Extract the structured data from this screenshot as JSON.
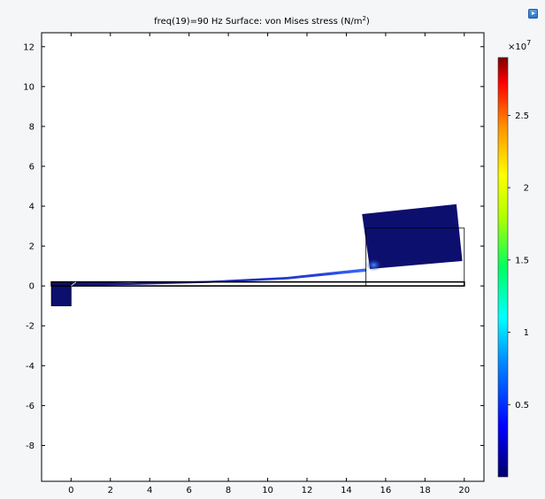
{
  "chart_data": {
    "type": "heatmap",
    "title": {
      "prefix": "freq(19)=90 Hz   Surface: von Mises stress (N/m",
      "superscript": "2",
      "suffix": ")"
    },
    "xlim": [
      -1.5,
      21
    ],
    "ylim": [
      -9.8,
      12.7
    ],
    "x_ticks": [
      0,
      2,
      4,
      6,
      8,
      10,
      12,
      14,
      16,
      18,
      20
    ],
    "y_ticks": [
      12,
      10,
      8,
      6,
      4,
      2,
      0,
      -2,
      -4,
      -6,
      -8
    ],
    "grid": false,
    "colorbar": {
      "multiplier_base": "×10",
      "multiplier_exponent": "7",
      "range": [
        0,
        2.9
      ],
      "ticks": [
        0.5,
        1,
        1.5,
        2,
        2.5
      ],
      "colormap": "rainbow"
    },
    "geometry": {
      "undeformed_beam": {
        "x": [
          -1,
          20
        ],
        "y": [
          0,
          0.2
        ]
      },
      "undeformed_block": {
        "x": [
          15,
          20
        ],
        "y": [
          0,
          2.9
        ]
      },
      "base_block": {
        "x": [
          -1,
          0
        ],
        "y": [
          -1,
          0.2
        ]
      },
      "deformed_beam_top": [
        [
          -1,
          0.2
        ],
        [
          3,
          0.15
        ],
        [
          7,
          0.25
        ],
        [
          11,
          0.45
        ],
        [
          15,
          0.88
        ]
      ],
      "deformed_beam_bottom": [
        [
          -1,
          0.0
        ],
        [
          3,
          0.05
        ],
        [
          7,
          0.15
        ],
        [
          11,
          0.33
        ],
        [
          15,
          0.72
        ]
      ],
      "deformed_block": [
        [
          14.8,
          3.6
        ],
        [
          19.6,
          4.1
        ],
        [
          19.9,
          1.25
        ],
        [
          15.2,
          0.85
        ]
      ]
    },
    "colors": {
      "low": "#0c0f6e",
      "mid": "#1c2fc4",
      "hot": "#3a78ff",
      "outline": "#000000"
    }
  },
  "toolbar": {
    "corner_icon": "play-icon"
  }
}
